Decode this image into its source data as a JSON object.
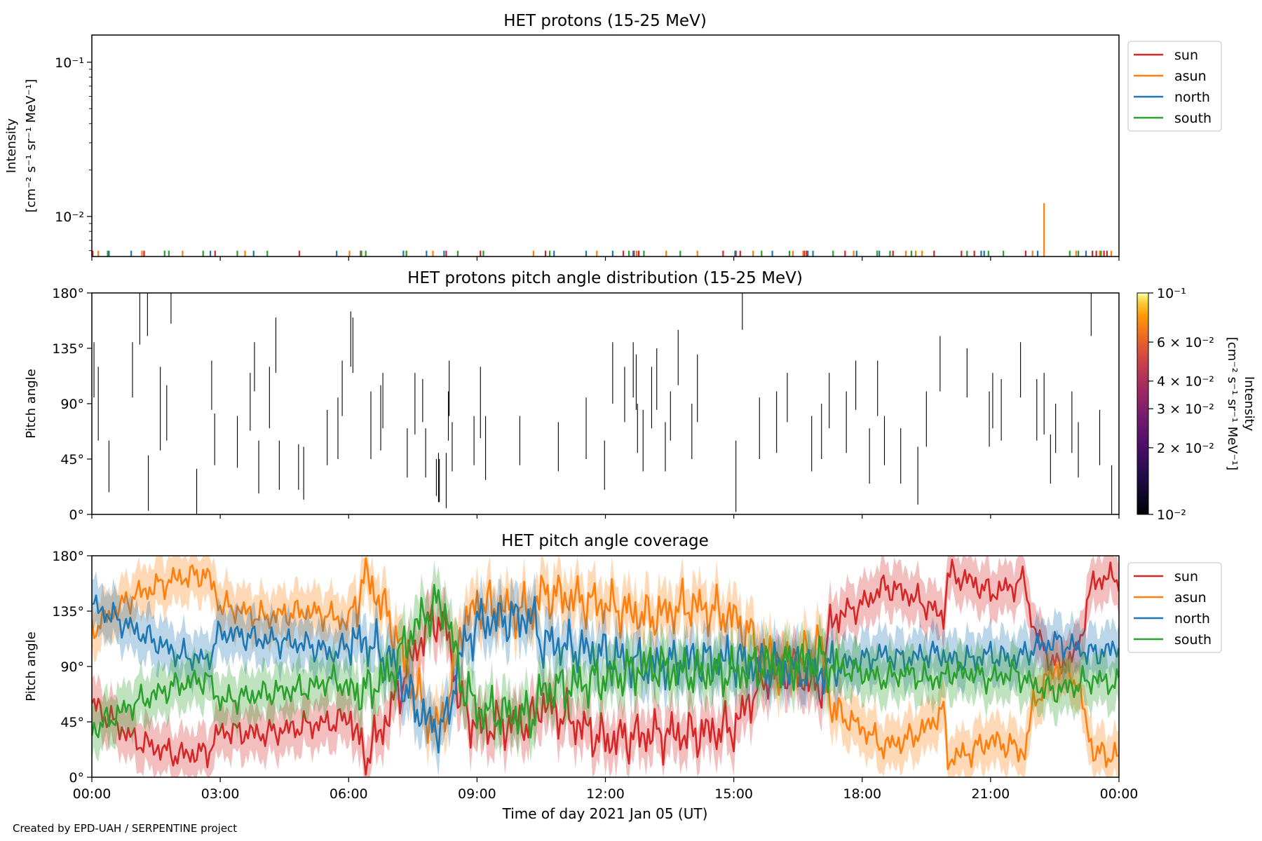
{
  "footer": "Created by EPD-UAH / SERPENTINE project",
  "chart_data": [
    {
      "type": "line",
      "title": "HET protons (15-25 MeV)",
      "ylabel_line1": "Intensity",
      "ylabel_line2": "[cm⁻² s⁻¹ sr⁻¹ MeV⁻¹]",
      "yscale": "log",
      "ylim": [
        0.0055,
        0.15
      ],
      "yticks": [
        {
          "value": 0.01,
          "label": "10⁻²"
        },
        {
          "value": 0.1,
          "label": "10⁻¹"
        }
      ],
      "legend": {
        "placement": "outside-right-top",
        "entries": [
          "sun",
          "asun",
          "north",
          "south"
        ]
      },
      "colors": {
        "sun": "#d62728",
        "asun": "#ff7f0e",
        "north": "#1f77b4",
        "south": "#2ca02c"
      },
      "baseline": 0.0055,
      "series": [
        {
          "name": "sun",
          "times": [
            0.02,
            1.22,
            2.88,
            4.85,
            6.28,
            8.28,
            9.08,
            10.6,
            12.42,
            12.67,
            12.78,
            14.75,
            15.05,
            15.15,
            16.65,
            16.7,
            17.6,
            18.72,
            19.68,
            20.32,
            20.62,
            21.82,
            23.38,
            23.47,
            23.65,
            23.72
          ],
          "values": [
            0.006,
            0.006,
            0.006,
            0.006,
            0.006,
            0.006,
            0.006,
            0.006,
            0.006,
            0.006,
            0.006,
            0.006,
            0.006,
            0.006,
            0.006,
            0.006,
            0.006,
            0.006,
            0.006,
            0.006,
            0.006,
            0.006,
            0.006,
            0.006,
            0.006,
            0.006
          ]
        },
        {
          "name": "asun",
          "times": [
            0.15,
            1.17,
            2.12,
            3.58,
            6.02,
            7.35,
            7.97,
            10.32,
            11.8,
            12.73,
            13.42,
            14.15,
            15.45,
            16.38,
            16.62,
            17.8,
            19.02,
            19.25,
            19.4,
            21.98,
            22.25,
            23.0,
            23.55,
            23.82
          ],
          "values": [
            0.006,
            0.006,
            0.006,
            0.006,
            0.006,
            0.006,
            0.006,
            0.006,
            0.006,
            0.006,
            0.006,
            0.006,
            0.006,
            0.006,
            0.006,
            0.006,
            0.006,
            0.006,
            0.006,
            0.006,
            0.0122,
            0.006,
            0.006,
            0.006
          ]
        },
        {
          "name": "north",
          "times": [
            0.4,
            0.92,
            2.77,
            3.78,
            5.72,
            7.28,
            7.82,
            8.23,
            10.8,
            11.55,
            12.17,
            12.65,
            15.03,
            15.9,
            16.73,
            16.85,
            17.87,
            18.4,
            20.78,
            20.85,
            22.1,
            23.23
          ],
          "values": [
            0.006,
            0.006,
            0.006,
            0.006,
            0.006,
            0.006,
            0.006,
            0.006,
            0.006,
            0.006,
            0.006,
            0.006,
            0.006,
            0.006,
            0.006,
            0.006,
            0.006,
            0.006,
            0.006,
            0.006,
            0.006,
            0.006
          ]
        },
        {
          "name": "south",
          "times": [
            0.37,
            1.7,
            1.8,
            2.6,
            3.4,
            4.1,
            6.3,
            6.4,
            7.35,
            8.55,
            9.15,
            10.7,
            12.55,
            12.9,
            13.75,
            15.65,
            16.3,
            17.32,
            18.35,
            18.65,
            19.15,
            20.45,
            20.95,
            21.3,
            22.85,
            23.05,
            23.58
          ],
          "values": [
            0.006,
            0.006,
            0.006,
            0.006,
            0.006,
            0.006,
            0.006,
            0.006,
            0.006,
            0.006,
            0.006,
            0.006,
            0.006,
            0.006,
            0.006,
            0.006,
            0.006,
            0.006,
            0.006,
            0.006,
            0.006,
            0.006,
            0.006,
            0.006,
            0.006,
            0.006,
            0.006
          ]
        }
      ]
    },
    {
      "type": "heatmap",
      "title": "HET protons pitch angle distribution (15-25 MeV)",
      "ylabel": "Pitch angle",
      "ylim": [
        0,
        180
      ],
      "yticks": [
        {
          "value": 0,
          "label": "0°"
        },
        {
          "value": 45,
          "label": "45°"
        },
        {
          "value": 90,
          "label": "90°"
        },
        {
          "value": 135,
          "label": "135°"
        },
        {
          "value": 180,
          "label": "180°"
        }
      ],
      "colorbar": {
        "label_line1": "Intensity",
        "label_line2": "[cm⁻² s⁻¹ sr⁻¹ MeV⁻¹]",
        "scale": "log",
        "range": [
          0.01,
          0.1
        ],
        "ticks": [
          {
            "value": 0.1,
            "label": "10⁻¹"
          },
          {
            "value": 0.06,
            "label": "6 × 10⁻²"
          },
          {
            "value": 0.04,
            "label": "4 × 10⁻²"
          },
          {
            "value": 0.03,
            "label": "3 × 10⁻²"
          },
          {
            "value": 0.02,
            "label": "2 × 10⁻²"
          },
          {
            "value": 0.01,
            "label": "10⁻²"
          }
        ]
      },
      "segments": [
        [
          0.05,
          95,
          140
        ],
        [
          0.15,
          60,
          120
        ],
        [
          0.4,
          18,
          60
        ],
        [
          0.95,
          95,
          140
        ],
        [
          1.12,
          138,
          180
        ],
        [
          1.3,
          145,
          180
        ],
        [
          1.32,
          3,
          48
        ],
        [
          1.6,
          52,
          120
        ],
        [
          1.75,
          60,
          105
        ],
        [
          1.85,
          155,
          180
        ],
        [
          2.45,
          0,
          37
        ],
        [
          2.8,
          85,
          125
        ],
        [
          2.87,
          40,
          82
        ],
        [
          3.4,
          38,
          80
        ],
        [
          3.7,
          68,
          115
        ],
        [
          3.8,
          100,
          140
        ],
        [
          3.9,
          17,
          60
        ],
        [
          4.15,
          70,
          120
        ],
        [
          4.3,
          115,
          160
        ],
        [
          4.38,
          20,
          60
        ],
        [
          4.83,
          20,
          57
        ],
        [
          4.95,
          12,
          55
        ],
        [
          5.5,
          40,
          85
        ],
        [
          5.75,
          45,
          95
        ],
        [
          5.85,
          80,
          125
        ],
        [
          6.05,
          120,
          165
        ],
        [
          6.1,
          115,
          160
        ],
        [
          6.52,
          45,
          100
        ],
        [
          6.75,
          52,
          105
        ],
        [
          6.8,
          70,
          115
        ],
        [
          7.37,
          30,
          70
        ],
        [
          7.55,
          65,
          115
        ],
        [
          7.73,
          75,
          110
        ],
        [
          7.8,
          30,
          70
        ],
        [
          8.05,
          15,
          45
        ],
        [
          8.1,
          10,
          50
        ],
        [
          8.12,
          10,
          45
        ],
        [
          8.28,
          5,
          50
        ],
        [
          8.33,
          60,
          100
        ],
        [
          8.35,
          80,
          125
        ],
        [
          8.42,
          35,
          75
        ],
        [
          8.93,
          40,
          80
        ],
        [
          9.08,
          62,
          120
        ],
        [
          9.2,
          28,
          80
        ],
        [
          10.0,
          40,
          80
        ],
        [
          10.9,
          35,
          75
        ],
        [
          11.55,
          45,
          95
        ],
        [
          11.98,
          20,
          60
        ],
        [
          12.17,
          90,
          140
        ],
        [
          12.45,
          75,
          120
        ],
        [
          12.65,
          95,
          140
        ],
        [
          12.72,
          85,
          130
        ],
        [
          12.75,
          50,
          90
        ],
        [
          12.88,
          35,
          85
        ],
        [
          13.08,
          70,
          120
        ],
        [
          13.2,
          85,
          135
        ],
        [
          13.4,
          35,
          75
        ],
        [
          13.52,
          60,
          100
        ],
        [
          13.7,
          105,
          150
        ],
        [
          14.02,
          45,
          90
        ],
        [
          14.15,
          75,
          130
        ],
        [
          15.05,
          2,
          60
        ],
        [
          15.2,
          150,
          180
        ],
        [
          15.6,
          45,
          95
        ],
        [
          16.0,
          50,
          100
        ],
        [
          16.25,
          75,
          115
        ],
        [
          16.82,
          35,
          80
        ],
        [
          17.05,
          45,
          90
        ],
        [
          17.23,
          70,
          115
        ],
        [
          17.63,
          50,
          100
        ],
        [
          17.85,
          85,
          125
        ],
        [
          18.17,
          25,
          70
        ],
        [
          18.36,
          80,
          125
        ],
        [
          18.52,
          40,
          80
        ],
        [
          18.9,
          25,
          70
        ],
        [
          19.3,
          8,
          55
        ],
        [
          19.5,
          55,
          100
        ],
        [
          19.82,
          100,
          145
        ],
        [
          20.45,
          95,
          135
        ],
        [
          20.97,
          55,
          100
        ],
        [
          21.05,
          70,
          115
        ],
        [
          21.25,
          60,
          110
        ],
        [
          21.7,
          95,
          140
        ],
        [
          22.08,
          60,
          110
        ],
        [
          22.25,
          65,
          115
        ],
        [
          22.4,
          25,
          65
        ],
        [
          22.52,
          50,
          90
        ],
        [
          22.9,
          50,
          100
        ],
        [
          23.05,
          30,
          75
        ],
        [
          23.35,
          145,
          180
        ],
        [
          23.55,
          40,
          85
        ],
        [
          23.83,
          0,
          40
        ]
      ]
    },
    {
      "type": "area",
      "title": "HET pitch angle coverage",
      "ylabel": "Pitch angle",
      "xlabel": "Time of day 2021 Jan 05 (UT)",
      "ylim": [
        0,
        180
      ],
      "yticks": [
        {
          "value": 0,
          "label": "0°"
        },
        {
          "value": 45,
          "label": "45°"
        },
        {
          "value": 90,
          "label": "90°"
        },
        {
          "value": 135,
          "label": "135°"
        },
        {
          "value": 180,
          "label": "180°"
        }
      ],
      "xlim": [
        "00:00",
        "00:00"
      ],
      "xticks": [
        "00:00",
        "03:00",
        "06:00",
        "09:00",
        "12:00",
        "15:00",
        "18:00",
        "21:00",
        "00:00"
      ],
      "legend": {
        "placement": "outside-right-top",
        "entries": [
          "sun",
          "asun",
          "north",
          "south"
        ]
      },
      "band_halfwidth_deg": 20,
      "series": [
        {
          "name": "sun",
          "color": "#d62728",
          "times": [
            0,
            1,
            2,
            2.7,
            3,
            4,
            5,
            5.7,
            6,
            6.4,
            7,
            7.5,
            8,
            8.3,
            8.6,
            9,
            9.5,
            10.3,
            10.5,
            12,
            13,
            14,
            15,
            15.5,
            16,
            16.5,
            17,
            17.3,
            18,
            18.5,
            19,
            19.5,
            19.9,
            20,
            20.5,
            21,
            21.5,
            21.8,
            22,
            22.5,
            23,
            23.4,
            24
          ],
          "values": [
            60,
            30,
            18,
            20,
            38,
            35,
            42,
            45,
            50,
            15,
            55,
            100,
            130,
            120,
            60,
            40,
            42,
            45,
            60,
            30,
            35,
            35,
            40,
            70,
            90,
            85,
            70,
            130,
            140,
            155,
            150,
            140,
            130,
            165,
            160,
            150,
            155,
            160,
            120,
            90,
            100,
            160,
            163
          ]
        },
        {
          "name": "asun",
          "color": "#ff7f0e",
          "times": [
            0,
            1,
            2,
            2.7,
            3,
            4,
            5,
            5.7,
            6,
            6.4,
            7,
            7.5,
            8,
            8.3,
            8.6,
            9,
            9.5,
            10.3,
            10.5,
            12,
            13,
            14,
            15,
            15.5,
            16,
            16.5,
            17,
            17.3,
            18,
            18.5,
            19,
            19.5,
            19.9,
            20,
            20.5,
            21,
            21.5,
            21.8,
            22,
            22.5,
            23,
            23.4,
            24
          ],
          "values": [
            120,
            148,
            162,
            165,
            140,
            130,
            135,
            130,
            125,
            165,
            125,
            75,
            40,
            55,
            120,
            140,
            138,
            135,
            150,
            140,
            130,
            140,
            130,
            110,
            90,
            95,
            110,
            55,
            40,
            25,
            30,
            40,
            55,
            15,
            20,
            30,
            25,
            20,
            60,
            90,
            80,
            20,
            17
          ]
        },
        {
          "name": "north",
          "color": "#1f77b4",
          "times": [
            0,
            1,
            2,
            2.7,
            3,
            4,
            5,
            5.7,
            6,
            6.4,
            7,
            7.5,
            8,
            8.3,
            8.6,
            9,
            9.5,
            10.3,
            10.5,
            12,
            13,
            14,
            15,
            15.5,
            16,
            16.5,
            17,
            17.3,
            18,
            18.5,
            19,
            19.5,
            19.9,
            20,
            20.5,
            21,
            21.5,
            21.8,
            22,
            22.5,
            23,
            23.4,
            24
          ],
          "values": [
            140,
            120,
            100,
            95,
            118,
            112,
            108,
            100,
            110,
            110,
            95,
            60,
            40,
            45,
            100,
            125,
            128,
            130,
            110,
            100,
            90,
            95,
            95,
            90,
            90,
            88,
            85,
            90,
            95,
            100,
            95,
            100,
            100,
            95,
            95,
            100,
            95,
            100,
            105,
            110,
            105,
            100,
            105
          ]
        },
        {
          "name": "south",
          "color": "#2ca02c",
          "times": [
            0,
            1,
            2,
            2.7,
            3,
            4,
            5,
            5.7,
            6,
            6.4,
            7,
            7.5,
            8,
            8.3,
            8.6,
            9,
            9.5,
            10.3,
            10.5,
            12,
            13,
            14,
            15,
            15.5,
            16,
            16.5,
            17,
            17.3,
            18,
            18.5,
            19,
            19.5,
            19.9,
            20,
            20.5,
            21,
            21.5,
            21.8,
            22,
            22.5,
            23,
            23.4,
            24
          ],
          "values": [
            38,
            60,
            75,
            80,
            62,
            68,
            72,
            80,
            70,
            70,
            85,
            120,
            140,
            135,
            80,
            55,
            52,
            50,
            70,
            80,
            90,
            85,
            85,
            90,
            90,
            92,
            95,
            90,
            85,
            80,
            85,
            80,
            80,
            85,
            85,
            80,
            85,
            80,
            75,
            70,
            75,
            80,
            75
          ]
        }
      ]
    }
  ]
}
